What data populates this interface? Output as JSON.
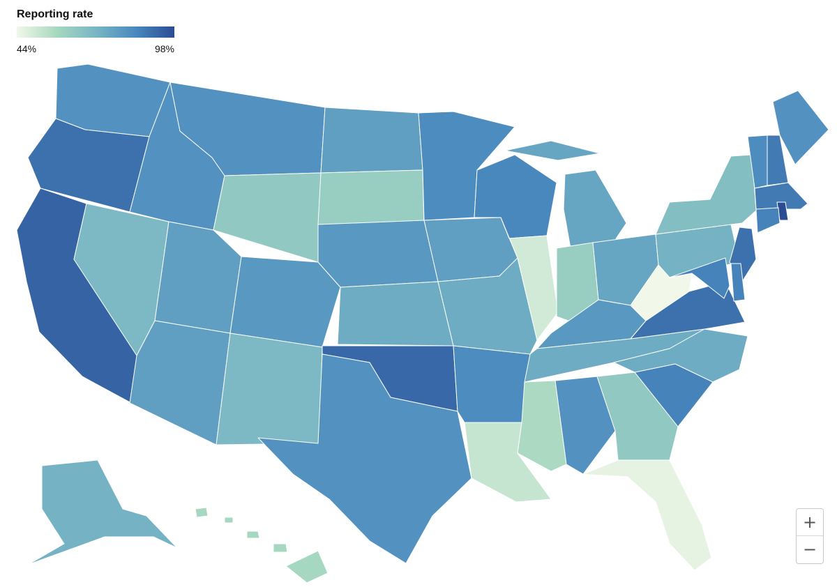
{
  "legend": {
    "title": "Reporting rate",
    "min_label": "44%",
    "max_label": "98%",
    "min": 44,
    "max": 98
  },
  "colors": {
    "low": "#f1f8e9",
    "mid1": "#a8d8c0",
    "mid2": "#78b6c4",
    "mid3": "#4a8abf",
    "high": "#2a4c94"
  },
  "zoom": {
    "in_label": "+",
    "out_label": "−"
  },
  "chart_data": {
    "type": "choropleth",
    "title": "",
    "value_name": "Reporting rate",
    "unit": "%",
    "scale": [
      44,
      98
    ],
    "regions": [
      {
        "id": "WA",
        "value": 82
      },
      {
        "id": "OR",
        "value": 90
      },
      {
        "id": "CA",
        "value": 93
      },
      {
        "id": "NV",
        "value": 70
      },
      {
        "id": "ID",
        "value": 82
      },
      {
        "id": "MT",
        "value": 82
      },
      {
        "id": "WY",
        "value": 64
      },
      {
        "id": "UT",
        "value": 78
      },
      {
        "id": "AZ",
        "value": 78
      },
      {
        "id": "CO",
        "value": 80
      },
      {
        "id": "NM",
        "value": 70
      },
      {
        "id": "ND",
        "value": 78
      },
      {
        "id": "SD",
        "value": 62
      },
      {
        "id": "NE",
        "value": 80
      },
      {
        "id": "KS",
        "value": 74
      },
      {
        "id": "OK",
        "value": 92
      },
      {
        "id": "TX",
        "value": 82
      },
      {
        "id": "MN",
        "value": 84
      },
      {
        "id": "IA",
        "value": 78
      },
      {
        "id": "MO",
        "value": 74
      },
      {
        "id": "AR",
        "value": 84
      },
      {
        "id": "LA",
        "value": 52
      },
      {
        "id": "WI",
        "value": 85
      },
      {
        "id": "IL",
        "value": 50
      },
      {
        "id": "MI",
        "value": 76
      },
      {
        "id": "IN",
        "value": 62
      },
      {
        "id": "OH",
        "value": 76
      },
      {
        "id": "KY",
        "value": 80
      },
      {
        "id": "TN",
        "value": 74
      },
      {
        "id": "MS",
        "value": 57
      },
      {
        "id": "AL",
        "value": 82
      },
      {
        "id": "GA",
        "value": 64
      },
      {
        "id": "FL",
        "value": 46
      },
      {
        "id": "SC",
        "value": 86
      },
      {
        "id": "NC",
        "value": 74
      },
      {
        "id": "VA",
        "value": 90
      },
      {
        "id": "WV",
        "value": 44
      },
      {
        "id": "PA",
        "value": 72
      },
      {
        "id": "NY",
        "value": 68
      },
      {
        "id": "VT",
        "value": 84
      },
      {
        "id": "NH",
        "value": 88
      },
      {
        "id": "ME",
        "value": 82
      },
      {
        "id": "MA",
        "value": 88
      },
      {
        "id": "RI",
        "value": 98
      },
      {
        "id": "CT",
        "value": 86
      },
      {
        "id": "NJ",
        "value": 90
      },
      {
        "id": "DE",
        "value": 86
      },
      {
        "id": "MD",
        "value": 86
      },
      {
        "id": "AK",
        "value": 72
      },
      {
        "id": "HI",
        "value": 58
      }
    ]
  }
}
